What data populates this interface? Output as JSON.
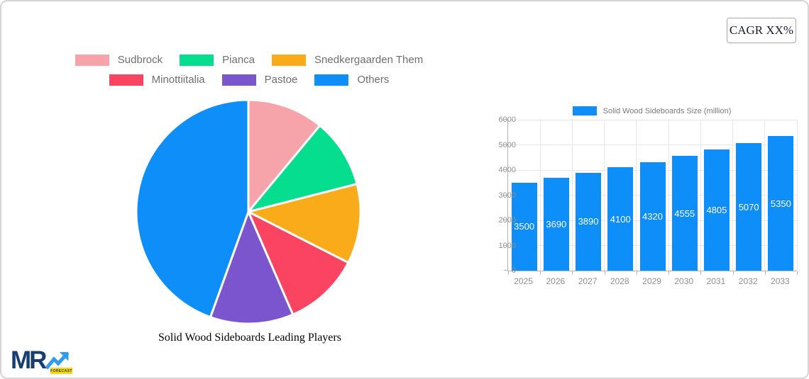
{
  "cagr_button": {
    "label": "CAGR XX%"
  },
  "logo": {
    "mr": "MR",
    "forecast": "FORECAST"
  },
  "colors": {
    "accent_blue": "#0d8ef8",
    "grid": "#e7e7e7",
    "axis_line": "#b5b5b5",
    "axis_text": "#8f8f8f",
    "legend_text": "#6f6f6f",
    "bar_value_text": "#ffffff"
  },
  "chart_data": [
    {
      "type": "pie",
      "title": "Solid Wood Sideboards Leading Players",
      "legend_position": "top",
      "start_angle_deg": -90,
      "direction": "clockwise",
      "slices": [
        {
          "label": "Sudbrock",
          "value": 11,
          "color": "#f6a4a9"
        },
        {
          "label": "Pianca",
          "value": 10,
          "color": "#06de8f"
        },
        {
          "label": "Snedkergaarden Them",
          "value": 11.5,
          "color": "#faab1a"
        },
        {
          "label": "Minottiitalia",
          "value": 11,
          "color": "#fb4362"
        },
        {
          "label": "Pastoe",
          "value": 12,
          "color": "#7a55ce"
        },
        {
          "label": "Others",
          "value": 44.5,
          "color": "#0d8ef8"
        }
      ]
    },
    {
      "type": "bar",
      "legend": "Solid Wood Sideboards Size (million)",
      "categories": [
        "2025",
        "2026",
        "2027",
        "2028",
        "2029",
        "2030",
        "2031",
        "2032",
        "2033"
      ],
      "values": [
        3500,
        3690,
        3890,
        4100,
        4320,
        4555,
        4805,
        5070,
        5350
      ],
      "bar_color": "#0d8ef8",
      "ylim": [
        0,
        6000
      ],
      "ytick_step": 1000,
      "grid": true,
      "value_labels": "inside-center-white"
    }
  ]
}
